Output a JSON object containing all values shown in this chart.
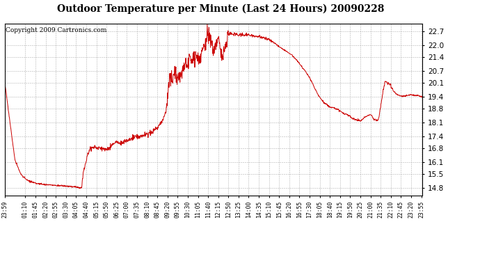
{
  "title": "Outdoor Temperature per Minute (Last 24 Hours) 20090228",
  "copyright": "Copyright 2009 Cartronics.com",
  "line_color": "#cc0000",
  "background_color": "#ffffff",
  "plot_bg_color": "#ffffff",
  "grid_color": "#aaaaaa",
  "grid_style": "--",
  "yticks": [
    14.8,
    15.5,
    16.1,
    16.8,
    17.4,
    18.1,
    18.8,
    19.4,
    20.1,
    20.7,
    21.4,
    22.0,
    22.7
  ],
  "ylim": [
    14.4,
    23.1
  ],
  "xtick_labels": [
    "23:59",
    "01:10",
    "01:45",
    "02:20",
    "02:55",
    "03:30",
    "04:05",
    "04:40",
    "05:15",
    "05:50",
    "06:25",
    "07:00",
    "07:35",
    "08:10",
    "08:45",
    "09:20",
    "09:55",
    "10:30",
    "11:05",
    "11:40",
    "12:15",
    "12:50",
    "13:25",
    "14:00",
    "14:35",
    "15:10",
    "15:45",
    "16:20",
    "16:55",
    "17:30",
    "18:05",
    "18:40",
    "19:15",
    "19:50",
    "20:25",
    "21:00",
    "21:35",
    "22:10",
    "22:45",
    "23:20",
    "23:55"
  ],
  "segments": [
    {
      "t": 0,
      "v": 20.1
    },
    {
      "t": 35,
      "v": 16.2
    },
    {
      "t": 55,
      "v": 15.5
    },
    {
      "t": 75,
      "v": 15.2
    },
    {
      "t": 100,
      "v": 15.05
    },
    {
      "t": 120,
      "v": 15.0
    },
    {
      "t": 150,
      "v": 14.95
    },
    {
      "t": 200,
      "v": 14.9
    },
    {
      "t": 240,
      "v": 14.85
    },
    {
      "t": 255,
      "v": 14.82
    },
    {
      "t": 265,
      "v": 14.8
    },
    {
      "t": 270,
      "v": 15.5
    },
    {
      "t": 285,
      "v": 16.5
    },
    {
      "t": 295,
      "v": 16.8
    },
    {
      "t": 310,
      "v": 16.85
    },
    {
      "t": 330,
      "v": 16.8
    },
    {
      "t": 345,
      "v": 16.75
    },
    {
      "t": 360,
      "v": 16.8
    },
    {
      "t": 370,
      "v": 17.0
    },
    {
      "t": 385,
      "v": 17.1
    },
    {
      "t": 395,
      "v": 17.05
    },
    {
      "t": 410,
      "v": 17.1
    },
    {
      "t": 430,
      "v": 17.25
    },
    {
      "t": 450,
      "v": 17.35
    },
    {
      "t": 470,
      "v": 17.4
    },
    {
      "t": 490,
      "v": 17.5
    },
    {
      "t": 510,
      "v": 17.65
    },
    {
      "t": 530,
      "v": 17.9
    },
    {
      "t": 545,
      "v": 18.2
    },
    {
      "t": 555,
      "v": 18.6
    },
    {
      "t": 560,
      "v": 19.2
    },
    {
      "t": 565,
      "v": 20.0
    },
    {
      "t": 568,
      "v": 20.4
    },
    {
      "t": 572,
      "v": 20.1
    },
    {
      "t": 575,
      "v": 20.5
    },
    {
      "t": 578,
      "v": 20.15
    },
    {
      "t": 582,
      "v": 20.4
    },
    {
      "t": 586,
      "v": 20.6
    },
    {
      "t": 590,
      "v": 20.7
    },
    {
      "t": 594,
      "v": 20.3
    },
    {
      "t": 598,
      "v": 20.5
    },
    {
      "t": 602,
      "v": 20.15
    },
    {
      "t": 606,
      "v": 20.4
    },
    {
      "t": 610,
      "v": 20.6
    },
    {
      "t": 615,
      "v": 20.8
    },
    {
      "t": 620,
      "v": 20.9
    },
    {
      "t": 625,
      "v": 21.1
    },
    {
      "t": 630,
      "v": 21.0
    },
    {
      "t": 635,
      "v": 21.15
    },
    {
      "t": 640,
      "v": 21.2
    },
    {
      "t": 645,
      "v": 21.3
    },
    {
      "t": 650,
      "v": 21.35
    },
    {
      "t": 655,
      "v": 21.4
    },
    {
      "t": 660,
      "v": 21.5
    },
    {
      "t": 665,
      "v": 21.4
    },
    {
      "t": 670,
      "v": 21.35
    },
    {
      "t": 675,
      "v": 21.5
    },
    {
      "t": 680,
      "v": 21.6
    },
    {
      "t": 685,
      "v": 21.8
    },
    {
      "t": 690,
      "v": 22.0
    },
    {
      "t": 695,
      "v": 22.2
    },
    {
      "t": 700,
      "v": 22.5
    },
    {
      "t": 703,
      "v": 22.7
    },
    {
      "t": 706,
      "v": 22.5
    },
    {
      "t": 710,
      "v": 22.2
    },
    {
      "t": 715,
      "v": 22.0
    },
    {
      "t": 720,
      "v": 21.8
    },
    {
      "t": 725,
      "v": 22.0
    },
    {
      "t": 730,
      "v": 22.2
    },
    {
      "t": 735,
      "v": 22.4
    },
    {
      "t": 740,
      "v": 22.1
    },
    {
      "t": 745,
      "v": 21.6
    },
    {
      "t": 750,
      "v": 21.4
    },
    {
      "t": 755,
      "v": 21.7
    },
    {
      "t": 760,
      "v": 22.0
    },
    {
      "t": 765,
      "v": 22.3
    },
    {
      "t": 770,
      "v": 22.5
    },
    {
      "t": 778,
      "v": 22.6
    },
    {
      "t": 785,
      "v": 22.55
    },
    {
      "t": 795,
      "v": 22.6
    },
    {
      "t": 805,
      "v": 22.5
    },
    {
      "t": 815,
      "v": 22.55
    },
    {
      "t": 825,
      "v": 22.5
    },
    {
      "t": 835,
      "v": 22.55
    },
    {
      "t": 845,
      "v": 22.5
    },
    {
      "t": 855,
      "v": 22.48
    },
    {
      "t": 870,
      "v": 22.45
    },
    {
      "t": 890,
      "v": 22.4
    },
    {
      "t": 910,
      "v": 22.3
    },
    {
      "t": 930,
      "v": 22.1
    },
    {
      "t": 950,
      "v": 21.9
    },
    {
      "t": 970,
      "v": 21.7
    },
    {
      "t": 990,
      "v": 21.5
    },
    {
      "t": 1010,
      "v": 21.2
    },
    {
      "t": 1030,
      "v": 20.8
    },
    {
      "t": 1050,
      "v": 20.4
    },
    {
      "t": 1060,
      "v": 20.1
    },
    {
      "t": 1070,
      "v": 19.8
    },
    {
      "t": 1080,
      "v": 19.5
    },
    {
      "t": 1090,
      "v": 19.3
    },
    {
      "t": 1100,
      "v": 19.1
    },
    {
      "t": 1110,
      "v": 19.0
    },
    {
      "t": 1120,
      "v": 18.9
    },
    {
      "t": 1130,
      "v": 18.85
    },
    {
      "t": 1140,
      "v": 18.8
    },
    {
      "t": 1150,
      "v": 18.75
    },
    {
      "t": 1160,
      "v": 18.65
    },
    {
      "t": 1170,
      "v": 18.55
    },
    {
      "t": 1180,
      "v": 18.5
    },
    {
      "t": 1190,
      "v": 18.4
    },
    {
      "t": 1200,
      "v": 18.3
    },
    {
      "t": 1210,
      "v": 18.25
    },
    {
      "t": 1215,
      "v": 18.2
    },
    {
      "t": 1220,
      "v": 18.22
    },
    {
      "t": 1225,
      "v": 18.18
    },
    {
      "t": 1230,
      "v": 18.2
    },
    {
      "t": 1240,
      "v": 18.35
    },
    {
      "t": 1250,
      "v": 18.45
    },
    {
      "t": 1260,
      "v": 18.5
    },
    {
      "t": 1265,
      "v": 18.45
    },
    {
      "t": 1270,
      "v": 18.3
    },
    {
      "t": 1275,
      "v": 18.25
    },
    {
      "t": 1280,
      "v": 18.2
    },
    {
      "t": 1285,
      "v": 18.22
    },
    {
      "t": 1290,
      "v": 18.3
    },
    {
      "t": 1295,
      "v": 18.8
    },
    {
      "t": 1300,
      "v": 19.3
    },
    {
      "t": 1305,
      "v": 19.7
    },
    {
      "t": 1310,
      "v": 20.1
    },
    {
      "t": 1315,
      "v": 20.2
    },
    {
      "t": 1320,
      "v": 20.1
    },
    {
      "t": 1325,
      "v": 20.05
    },
    {
      "t": 1330,
      "v": 20.0
    },
    {
      "t": 1335,
      "v": 19.85
    },
    {
      "t": 1340,
      "v": 19.7
    },
    {
      "t": 1345,
      "v": 19.6
    },
    {
      "t": 1350,
      "v": 19.55
    },
    {
      "t": 1355,
      "v": 19.5
    },
    {
      "t": 1360,
      "v": 19.45
    },
    {
      "t": 1370,
      "v": 19.42
    },
    {
      "t": 1380,
      "v": 19.44
    },
    {
      "t": 1390,
      "v": 19.48
    },
    {
      "t": 1400,
      "v": 19.5
    },
    {
      "t": 1410,
      "v": 19.48
    },
    {
      "t": 1420,
      "v": 19.46
    },
    {
      "t": 1430,
      "v": 19.44
    },
    {
      "t": 1440,
      "v": 19.4
    }
  ]
}
